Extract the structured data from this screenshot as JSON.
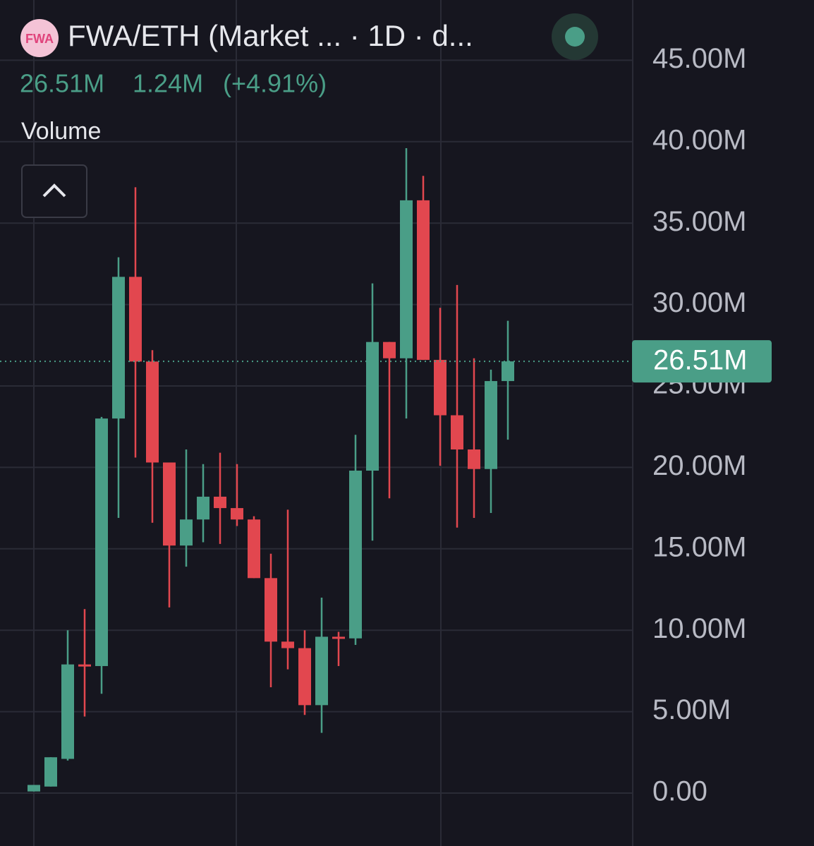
{
  "header": {
    "logo": "FWA",
    "title": "FWA/ETH (Market ... · 1D · d...",
    "price": "26.51M",
    "change": "1.24M",
    "change_pct": "(+4.91%)",
    "indicator": "Volume"
  },
  "chart_data": {
    "type": "candlestick",
    "up_color": "#4a9e87",
    "down_color": "#e2474f",
    "open": [
      0.1,
      0.4,
      2.1,
      7.9,
      7.8,
      23.0,
      31.7,
      26.5,
      20.3,
      15.2,
      16.8,
      18.2,
      17.5,
      16.8,
      13.2,
      9.3,
      8.9,
      5.4,
      9.6,
      9.5,
      19.8,
      27.7,
      26.7,
      36.4,
      26.6,
      23.2,
      21.1,
      19.9,
      25.3
    ],
    "high": [
      0.5,
      2.2,
      10.0,
      11.3,
      23.1,
      32.9,
      37.2,
      27.2,
      20.3,
      21.1,
      20.2,
      20.9,
      20.2,
      17.0,
      14.7,
      17.4,
      10.0,
      12.0,
      9.9,
      22.0,
      31.3,
      27.7,
      39.6,
      37.9,
      29.8,
      31.2,
      26.7,
      26.0,
      29.0
    ],
    "low": [
      0.1,
      0.4,
      2.0,
      4.7,
      6.1,
      16.9,
      20.6,
      16.6,
      11.4,
      13.9,
      15.4,
      15.3,
      16.4,
      13.2,
      6.5,
      7.6,
      4.8,
      3.7,
      7.8,
      9.1,
      15.5,
      18.1,
      23.0,
      26.6,
      20.1,
      16.3,
      16.9,
      17.2,
      21.7
    ],
    "close": [
      0.5,
      2.2,
      7.9,
      7.8,
      23.0,
      31.7,
      26.5,
      20.3,
      15.2,
      16.8,
      18.2,
      17.5,
      16.8,
      13.2,
      9.3,
      8.9,
      5.4,
      9.6,
      9.5,
      19.8,
      27.7,
      26.7,
      36.4,
      26.6,
      23.2,
      21.1,
      19.9,
      25.3,
      26.51
    ],
    "ylim": [
      -3.25,
      48.7
    ],
    "yticks": [
      {
        "value": 0,
        "label": "0.00"
      },
      {
        "value": 5,
        "label": "5.00M"
      },
      {
        "value": 10,
        "label": "10.00M"
      },
      {
        "value": 15,
        "label": "15.00M"
      },
      {
        "value": 20,
        "label": "20.00M"
      },
      {
        "value": 25,
        "label": "25.00M"
      },
      {
        "value": 30,
        "label": "30.00M"
      },
      {
        "value": 35,
        "label": "35.00M"
      },
      {
        "value": 40,
        "label": "40.00M"
      },
      {
        "value": 45,
        "label": "45.00M"
      }
    ],
    "last_price": {
      "value": 26.51,
      "label": "26.51M"
    },
    "grid": true
  }
}
